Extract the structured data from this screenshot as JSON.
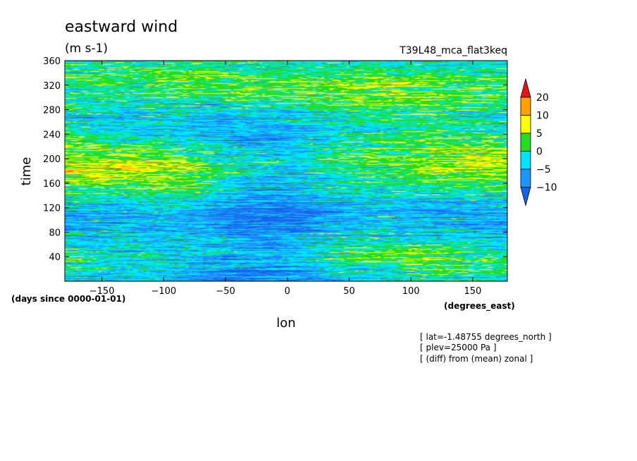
{
  "chart_data": {
    "type": "heatmap",
    "title": "eastward wind",
    "units": "(m s-1)",
    "run_name": "T39L48_mca_flat3keq",
    "xlabel": "lon",
    "ylabel": "time",
    "x_units": "(degrees_east)",
    "y_units": "(days since 0000-01-01)",
    "xlim": [
      -180,
      178
    ],
    "ylim": [
      0,
      360
    ],
    "x_ticks": [
      -150,
      -100,
      -50,
      0,
      50,
      100,
      150
    ],
    "y_ticks": [
      40,
      80,
      120,
      160,
      200,
      240,
      280,
      320,
      360
    ],
    "colorbar": {
      "levels": [
        -10,
        -5,
        0,
        5,
        10,
        20
      ],
      "level_labels": [
        "-10",
        "-5",
        "0",
        "5",
        "10",
        "20"
      ],
      "colors": [
        "#1565e6",
        "#1e96ff",
        "#00e5ff",
        "#22dd22",
        "#ffff00",
        "#ffa100",
        "#e61414"
      ],
      "extend": "both"
    },
    "annotations": [
      "[ lat=-1.48755 degrees_north ]",
      "[ plev=25000 Pa ]",
      "[ (diff) from (mean) zonal ]"
    ]
  }
}
